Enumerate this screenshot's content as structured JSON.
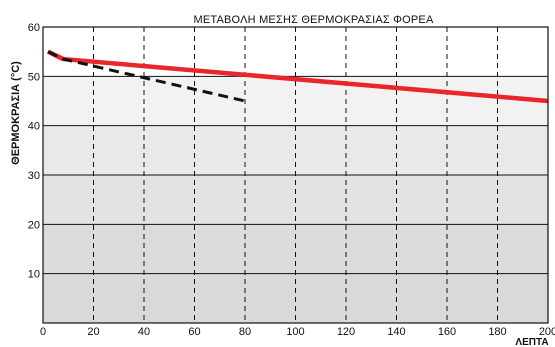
{
  "chart_data": {
    "type": "line",
    "title": "ΜΕΤΑΒΟΛΗ ΜΕΣΗΣ ΘΕΡΜΟΚΡΑΣΙΑΣ ΦΟΡΕΑ",
    "xlabel": "ΛΕΠΤΑ",
    "ylabel": "ΘΕΡΜΟΚΡΑΣΙΑ (°C)",
    "xlim": [
      0,
      200
    ],
    "ylim": [
      0,
      60
    ],
    "x_ticks": [
      0,
      20,
      40,
      60,
      80,
      100,
      120,
      140,
      160,
      180,
      200
    ],
    "y_ticks": [
      10,
      20,
      30,
      40,
      50,
      60
    ],
    "grid": true,
    "band_colors": [
      "#d9d9d9",
      "#dcdcdc",
      "#e3e3e3",
      "#e9e9e9",
      "#f2f2f2",
      "#ffffff"
    ],
    "series": [
      {
        "style": "solid",
        "color": "#e8262c",
        "x": [
          2,
          8,
          200
        ],
        "y": [
          55,
          53.5,
          45
        ]
      },
      {
        "style": "dashed",
        "color": "#111111",
        "x": [
          2,
          8,
          80
        ],
        "y": [
          55,
          53.5,
          45
        ]
      }
    ]
  }
}
